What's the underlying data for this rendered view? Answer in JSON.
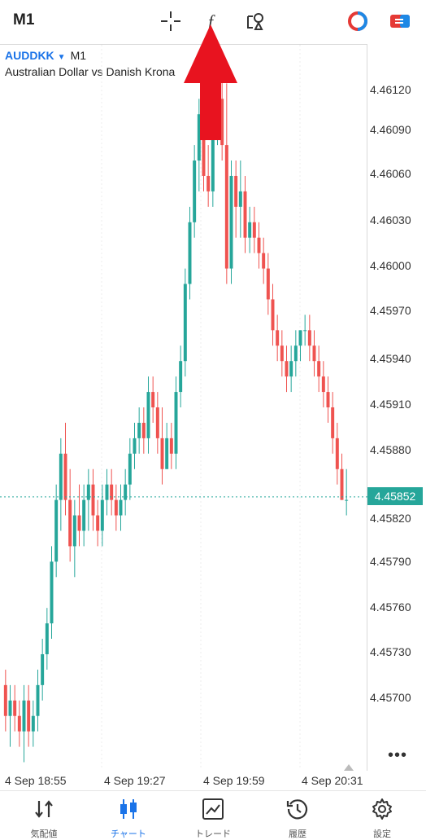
{
  "topbar": {
    "timeframe": "M1",
    "icons": [
      "crosshair-icon",
      "function-icon",
      "objects-icon",
      "account-icon",
      "toggle-icon"
    ]
  },
  "chart": {
    "symbol": "AUDDKK",
    "timeframe": "M1",
    "description": "Australian Dollar vs Danish Krona",
    "current_price": "4.45852",
    "price_ticks": [
      "4.46120",
      "4.46090",
      "4.46060",
      "4.46030",
      "4.46000",
      "4.45970",
      "4.45940",
      "4.45910",
      "4.45880",
      "4.45820",
      "4.45790",
      "4.45760",
      "4.45730",
      "4.45700"
    ],
    "time_ticks": [
      "4 Sep 18:55",
      "4 Sep 19:27",
      "4 Sep 19:59",
      "4 Sep 20:31"
    ],
    "up_color": "#26a69a",
    "down_color": "#ef5350"
  },
  "chart_data": {
    "type": "candlestick",
    "ylim": [
      4.45675,
      4.46145
    ],
    "current": 4.45852,
    "candles": [
      [
        4.4573,
        4.4574,
        4.457,
        4.4571
      ],
      [
        4.4571,
        4.4573,
        4.4569,
        4.4572
      ],
      [
        4.4572,
        4.4573,
        4.457,
        4.4571
      ],
      [
        4.4571,
        4.4572,
        4.4569,
        4.457
      ],
      [
        4.457,
        4.4573,
        4.4568,
        4.4572
      ],
      [
        4.4572,
        4.4573,
        4.4569,
        4.457
      ],
      [
        4.457,
        4.4572,
        4.4569,
        4.4571
      ],
      [
        4.4571,
        4.4574,
        4.457,
        4.4573
      ],
      [
        4.4573,
        4.4576,
        4.4572,
        4.4575
      ],
      [
        4.4575,
        4.4578,
        4.4574,
        4.4577
      ],
      [
        4.4577,
        4.4582,
        4.4576,
        4.4581
      ],
      [
        4.4581,
        4.4586,
        4.458,
        4.4585
      ],
      [
        4.4585,
        4.4589,
        4.4583,
        4.4588
      ],
      [
        4.4588,
        4.459,
        4.4584,
        4.4585
      ],
      [
        4.4585,
        4.4587,
        4.4581,
        4.4582
      ],
      [
        4.4582,
        4.4585,
        4.458,
        4.4584
      ],
      [
        4.4584,
        4.4586,
        4.4582,
        4.4583
      ],
      [
        4.4583,
        4.4586,
        4.4582,
        4.4585
      ],
      [
        4.4585,
        4.4587,
        4.4583,
        4.4586
      ],
      [
        4.4586,
        4.4587,
        4.4583,
        4.4584
      ],
      [
        4.4584,
        4.4585,
        4.4582,
        4.4583
      ],
      [
        4.4583,
        4.4586,
        4.4582,
        4.4585
      ],
      [
        4.4585,
        4.4587,
        4.4584,
        4.4586
      ],
      [
        4.4586,
        4.4587,
        4.4584,
        4.4585
      ],
      [
        4.4585,
        4.4586,
        4.4583,
        4.4584
      ],
      [
        4.4584,
        4.4586,
        4.4583,
        4.4585
      ],
      [
        4.4585,
        4.4587,
        4.4584,
        4.4586
      ],
      [
        4.4586,
        4.4589,
        4.4585,
        4.4588
      ],
      [
        4.4588,
        4.459,
        4.4587,
        4.4589
      ],
      [
        4.4589,
        4.4591,
        4.4588,
        4.459
      ],
      [
        4.459,
        4.4591,
        4.4588,
        4.4589
      ],
      [
        4.4589,
        4.4593,
        4.4588,
        4.4592
      ],
      [
        4.4592,
        4.4593,
        4.459,
        4.4591
      ],
      [
        4.4591,
        4.4592,
        4.4588,
        4.4589
      ],
      [
        4.4589,
        4.4591,
        4.4586,
        4.4587
      ],
      [
        4.4587,
        4.459,
        4.4587,
        4.4589
      ],
      [
        4.4589,
        4.459,
        4.4587,
        4.4588
      ],
      [
        4.4588,
        4.4593,
        4.4587,
        4.4592
      ],
      [
        4.4592,
        4.4595,
        4.4591,
        4.4594
      ],
      [
        4.4594,
        4.46,
        4.4593,
        4.4599
      ],
      [
        4.4599,
        4.4604,
        4.4598,
        4.4603
      ],
      [
        4.4603,
        4.4608,
        4.4602,
        4.4607
      ],
      [
        4.4607,
        4.4611,
        4.4605,
        4.461
      ],
      [
        4.461,
        4.4611,
        4.4605,
        4.4606
      ],
      [
        4.4606,
        4.4608,
        4.4604,
        4.4605
      ],
      [
        4.4605,
        4.4611,
        4.4604,
        4.461
      ],
      [
        4.461,
        4.4613,
        4.4608,
        4.4611
      ],
      [
        4.4611,
        4.4614,
        4.4607,
        4.4608
      ],
      [
        4.4608,
        4.4612,
        4.4599,
        4.46
      ],
      [
        4.46,
        4.4607,
        4.4599,
        4.4606
      ],
      [
        4.4606,
        4.4607,
        4.4602,
        4.4604
      ],
      [
        4.4604,
        4.4607,
        4.4602,
        4.4605
      ],
      [
        4.4605,
        4.4606,
        4.4601,
        4.4602
      ],
      [
        4.4602,
        4.4604,
        4.4601,
        4.4603
      ],
      [
        4.4603,
        4.4604,
        4.4601,
        4.4602
      ],
      [
        4.4602,
        4.4603,
        4.46,
        4.4601
      ],
      [
        4.4601,
        4.4602,
        4.4599,
        4.46
      ],
      [
        4.46,
        4.4601,
        4.4597,
        4.4598
      ],
      [
        4.4598,
        4.4599,
        4.4595,
        4.4596
      ],
      [
        4.4596,
        4.4597,
        4.4594,
        4.4595
      ],
      [
        4.4595,
        4.4596,
        4.4593,
        4.4594
      ],
      [
        4.4594,
        4.4595,
        4.4592,
        4.4593
      ],
      [
        4.4593,
        4.4595,
        4.4592,
        4.4594
      ],
      [
        4.4594,
        4.4596,
        4.4593,
        4.4595
      ],
      [
        4.4595,
        4.4596,
        4.4594,
        4.4596
      ],
      [
        4.4596,
        4.4597,
        4.4595,
        4.4596
      ],
      [
        4.4596,
        4.4597,
        4.4594,
        4.4595
      ],
      [
        4.4595,
        4.4596,
        4.4593,
        4.4594
      ],
      [
        4.4594,
        4.4595,
        4.4592,
        4.4593
      ],
      [
        4.4593,
        4.4594,
        4.4591,
        4.4592
      ],
      [
        4.4592,
        4.4593,
        4.459,
        4.4591
      ],
      [
        4.4591,
        4.4592,
        4.4588,
        4.4589
      ],
      [
        4.4589,
        4.459,
        4.4586,
        4.4587
      ],
      [
        4.4587,
        4.4588,
        4.4585,
        4.4585
      ],
      [
        4.4585,
        4.4587,
        4.4584,
        4.4585
      ]
    ]
  },
  "bottom_nav": [
    {
      "label": "気配値",
      "icon": "quotes-icon"
    },
    {
      "label": "チャート",
      "icon": "chart-icon",
      "active": true
    },
    {
      "label": "トレード",
      "icon": "trade-icon"
    },
    {
      "label": "履歴",
      "icon": "history-icon"
    },
    {
      "label": "設定",
      "icon": "settings-icon"
    }
  ]
}
